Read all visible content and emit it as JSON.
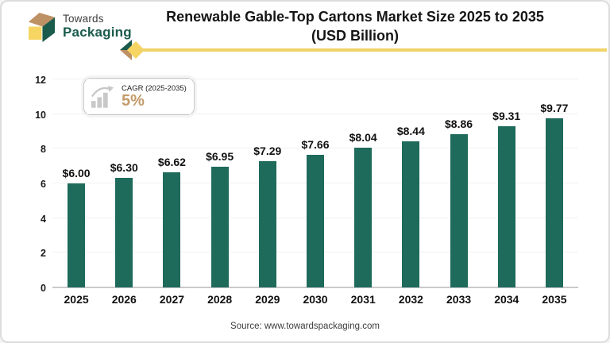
{
  "colors": {
    "teal": "#1E6A5B",
    "green": "#1A5B4C",
    "tan": "#BE9164",
    "yellow": "#F6D563",
    "accent": "#F1D268",
    "gold": "#C49B6A",
    "icongray": "#C8C8C8"
  },
  "brand": {
    "name_top": "Towards",
    "name_bottom": "Packaging",
    "logo_icon": "packaging-cube-icon"
  },
  "header": {
    "title_line1": "Renewable Gable-Top Cartons Market Size 2025 to 2035",
    "title_line2": "(USD Billion)",
    "decoration_icon": "arrow-diamond-icon"
  },
  "badge": {
    "icon": "growth-bar-chart-icon",
    "label": "CAGR (2025-2035)",
    "value": "5%"
  },
  "chart_data": {
    "type": "bar",
    "title": "Renewable Gable-Top Cartons Market Size 2025 to 2035 (USD Billion)",
    "xlabel": "",
    "ylabel": "",
    "categories": [
      "2025",
      "2026",
      "2027",
      "2028",
      "2029",
      "2030",
      "2031",
      "2032",
      "2033",
      "2034",
      "2035"
    ],
    "values": [
      6.0,
      6.3,
      6.62,
      6.95,
      7.29,
      7.66,
      8.04,
      8.44,
      8.86,
      9.31,
      9.77
    ],
    "value_labels": [
      "$6.00",
      "$6.30",
      "$6.62",
      "$6.95",
      "$7.29",
      "$7.66",
      "$8.04",
      "$8.44",
      "$8.86",
      "$9.31",
      "$9.77"
    ],
    "ylim": [
      0,
      12
    ],
    "yticks": [
      0,
      2,
      4,
      6,
      8,
      10,
      12
    ],
    "grid": true,
    "legend": "none"
  },
  "footer": {
    "source": "Source: www.towardspackaging.com"
  }
}
